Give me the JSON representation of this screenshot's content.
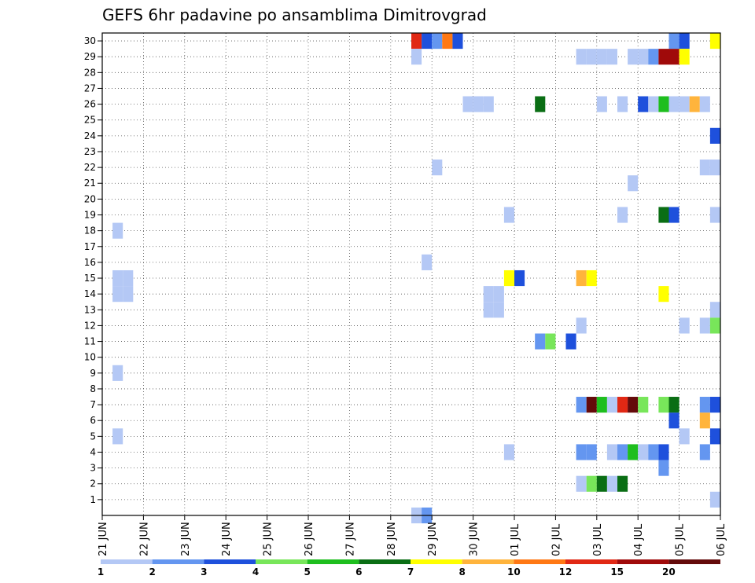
{
  "chart_data": {
    "type": "heatmap",
    "title": "GEFS 6hr padavine po ansamblima Dimitrovgrad",
    "ylim": [
      0,
      30
    ],
    "y_ticks": [
      1,
      2,
      3,
      4,
      5,
      6,
      7,
      8,
      9,
      10,
      11,
      12,
      13,
      14,
      15,
      16,
      17,
      18,
      19,
      20,
      21,
      22,
      23,
      24,
      25,
      26,
      27,
      28,
      29,
      30
    ],
    "x_tick_labels": [
      "21 JUN",
      "22 JUN",
      "23 JUN",
      "24 JUN",
      "25 JUN",
      "26 JUN",
      "27 JUN",
      "28 JUN",
      "29 JUN",
      "30 JUN",
      "01 JUL",
      "02 JUL",
      "03 JUL",
      "04 JUL",
      "05 JUL",
      "06 JUL"
    ],
    "grid": true,
    "legend": {
      "placement": "bottom",
      "labels": [
        "1",
        "2",
        "3",
        "4",
        "5",
        "6",
        "7",
        "8",
        "10",
        "12",
        "15",
        "20"
      ],
      "colors": [
        "#b4c8f5",
        "#6496f0",
        "#1e50dc",
        "#78e65a",
        "#1ebe1e",
        "#0a6e14",
        "#ffff00",
        "#ffb43c",
        "#ff7814",
        "#e12814",
        "#a00a0a",
        "#640a0a"
      ]
    },
    "cells": [
      {
        "day": 7.5,
        "member": 0,
        "level": 1
      },
      {
        "day": 7.75,
        "member": 0,
        "level": 2
      },
      {
        "day": 7.5,
        "member": 30,
        "level": 10
      },
      {
        "day": 7.75,
        "member": 30,
        "level": 3
      },
      {
        "day": 8.0,
        "member": 30,
        "level": 2
      },
      {
        "day": 8.25,
        "member": 30,
        "level": 9
      },
      {
        "day": 8.5,
        "member": 30,
        "level": 3
      },
      {
        "day": 13.75,
        "member": 30,
        "level": 2
      },
      {
        "day": 14.0,
        "member": 30,
        "level": 3
      },
      {
        "day": 14.75,
        "member": 30,
        "level": 7
      },
      {
        "day": 7.5,
        "member": 29,
        "level": 1
      },
      {
        "day": 11.5,
        "member": 29,
        "level": 1
      },
      {
        "day": 11.75,
        "member": 29,
        "level": 1
      },
      {
        "day": 12.0,
        "member": 29,
        "level": 1
      },
      {
        "day": 12.25,
        "member": 29,
        "level": 1
      },
      {
        "day": 12.75,
        "member": 29,
        "level": 1
      },
      {
        "day": 13.0,
        "member": 29,
        "level": 1
      },
      {
        "day": 13.25,
        "member": 29,
        "level": 2
      },
      {
        "day": 13.5,
        "member": 29,
        "level": 11
      },
      {
        "day": 13.75,
        "member": 29,
        "level": 11
      },
      {
        "day": 14.0,
        "member": 29,
        "level": 7
      },
      {
        "day": 8.75,
        "member": 26,
        "level": 1
      },
      {
        "day": 9.0,
        "member": 26,
        "level": 1
      },
      {
        "day": 9.25,
        "member": 26,
        "level": 1
      },
      {
        "day": 10.5,
        "member": 26,
        "level": 6
      },
      {
        "day": 12.0,
        "member": 26,
        "level": 1
      },
      {
        "day": 12.5,
        "member": 26,
        "level": 1
      },
      {
        "day": 13.0,
        "member": 26,
        "level": 3
      },
      {
        "day": 13.25,
        "member": 26,
        "level": 1
      },
      {
        "day": 13.5,
        "member": 26,
        "level": 5
      },
      {
        "day": 13.75,
        "member": 26,
        "level": 1
      },
      {
        "day": 14.0,
        "member": 26,
        "level": 1
      },
      {
        "day": 14.25,
        "member": 26,
        "level": 8
      },
      {
        "day": 14.5,
        "member": 26,
        "level": 1
      },
      {
        "day": 14.75,
        "member": 24,
        "level": 3
      },
      {
        "day": 8.0,
        "member": 22,
        "level": 1
      },
      {
        "day": 14.5,
        "member": 22,
        "level": 1
      },
      {
        "day": 14.75,
        "member": 22,
        "level": 1
      },
      {
        "day": 12.75,
        "member": 21,
        "level": 1
      },
      {
        "day": 0.25,
        "member": 18,
        "level": 1
      },
      {
        "day": 9.75,
        "member": 19,
        "level": 1
      },
      {
        "day": 12.5,
        "member": 19,
        "level": 1
      },
      {
        "day": 13.5,
        "member": 19,
        "level": 6
      },
      {
        "day": 13.75,
        "member": 19,
        "level": 3
      },
      {
        "day": 14.75,
        "member": 19,
        "level": 1
      },
      {
        "day": 7.75,
        "member": 16,
        "level": 1
      },
      {
        "day": 9.75,
        "member": 15,
        "level": 7
      },
      {
        "day": 10.0,
        "member": 15,
        "level": 3
      },
      {
        "day": 11.5,
        "member": 15,
        "level": 8
      },
      {
        "day": 11.75,
        "member": 15,
        "level": 7
      },
      {
        "day": 0.25,
        "member": 15,
        "level": 1
      },
      {
        "day": 0.5,
        "member": 15,
        "level": 1
      },
      {
        "day": 0.25,
        "member": 14,
        "level": 1
      },
      {
        "day": 0.5,
        "member": 14,
        "level": 1
      },
      {
        "day": 13.5,
        "member": 14,
        "level": 7
      },
      {
        "day": 9.25,
        "member": 13,
        "level": 1
      },
      {
        "day": 9.5,
        "member": 13,
        "level": 1
      },
      {
        "day": 14.75,
        "member": 13,
        "level": 1
      },
      {
        "day": 9.25,
        "member": 14,
        "level": 1
      },
      {
        "day": 9.5,
        "member": 14,
        "level": 1
      },
      {
        "day": 11.5,
        "member": 12,
        "level": 1
      },
      {
        "day": 14.0,
        "member": 12,
        "level": 1
      },
      {
        "day": 14.5,
        "member": 12,
        "level": 1
      },
      {
        "day": 14.75,
        "member": 12,
        "level": 4
      },
      {
        "day": 10.5,
        "member": 11,
        "level": 2
      },
      {
        "day": 10.75,
        "member": 11,
        "level": 4
      },
      {
        "day": 11.25,
        "member": 11,
        "level": 3
      },
      {
        "day": 0.25,
        "member": 9,
        "level": 1
      },
      {
        "day": 11.5,
        "member": 7,
        "level": 2
      },
      {
        "day": 11.75,
        "member": 7,
        "level": 12
      },
      {
        "day": 12.0,
        "member": 7,
        "level": 5
      },
      {
        "day": 12.25,
        "member": 7,
        "level": 1
      },
      {
        "day": 12.5,
        "member": 7,
        "level": 10
      },
      {
        "day": 12.75,
        "member": 7,
        "level": 12
      },
      {
        "day": 13.0,
        "member": 7,
        "level": 4
      },
      {
        "day": 13.5,
        "member": 7,
        "level": 4
      },
      {
        "day": 13.75,
        "member": 7,
        "level": 6
      },
      {
        "day": 14.5,
        "member": 7,
        "level": 2
      },
      {
        "day": 14.75,
        "member": 7,
        "level": 3
      },
      {
        "day": 13.75,
        "member": 6,
        "level": 3
      },
      {
        "day": 14.5,
        "member": 6,
        "level": 8
      },
      {
        "day": 0.25,
        "member": 5,
        "level": 1
      },
      {
        "day": 14.0,
        "member": 5,
        "level": 1
      },
      {
        "day": 14.75,
        "member": 5,
        "level": 3
      },
      {
        "day": 9.75,
        "member": 4,
        "level": 1
      },
      {
        "day": 11.5,
        "member": 4,
        "level": 2
      },
      {
        "day": 11.75,
        "member": 4,
        "level": 2
      },
      {
        "day": 12.25,
        "member": 4,
        "level": 1
      },
      {
        "day": 12.5,
        "member": 4,
        "level": 2
      },
      {
        "day": 12.75,
        "member": 4,
        "level": 5
      },
      {
        "day": 13.0,
        "member": 4,
        "level": 1
      },
      {
        "day": 13.25,
        "member": 4,
        "level": 2
      },
      {
        "day": 13.5,
        "member": 4,
        "level": 3
      },
      {
        "day": 14.5,
        "member": 4,
        "level": 2
      },
      {
        "day": 13.5,
        "member": 3,
        "level": 2
      },
      {
        "day": 11.5,
        "member": 2,
        "level": 1
      },
      {
        "day": 11.75,
        "member": 2,
        "level": 4
      },
      {
        "day": 12.0,
        "member": 2,
        "level": 6
      },
      {
        "day": 12.25,
        "member": 2,
        "level": 1
      },
      {
        "day": 12.5,
        "member": 2,
        "level": 6
      },
      {
        "day": 14.75,
        "member": 1,
        "level": 1
      }
    ]
  }
}
